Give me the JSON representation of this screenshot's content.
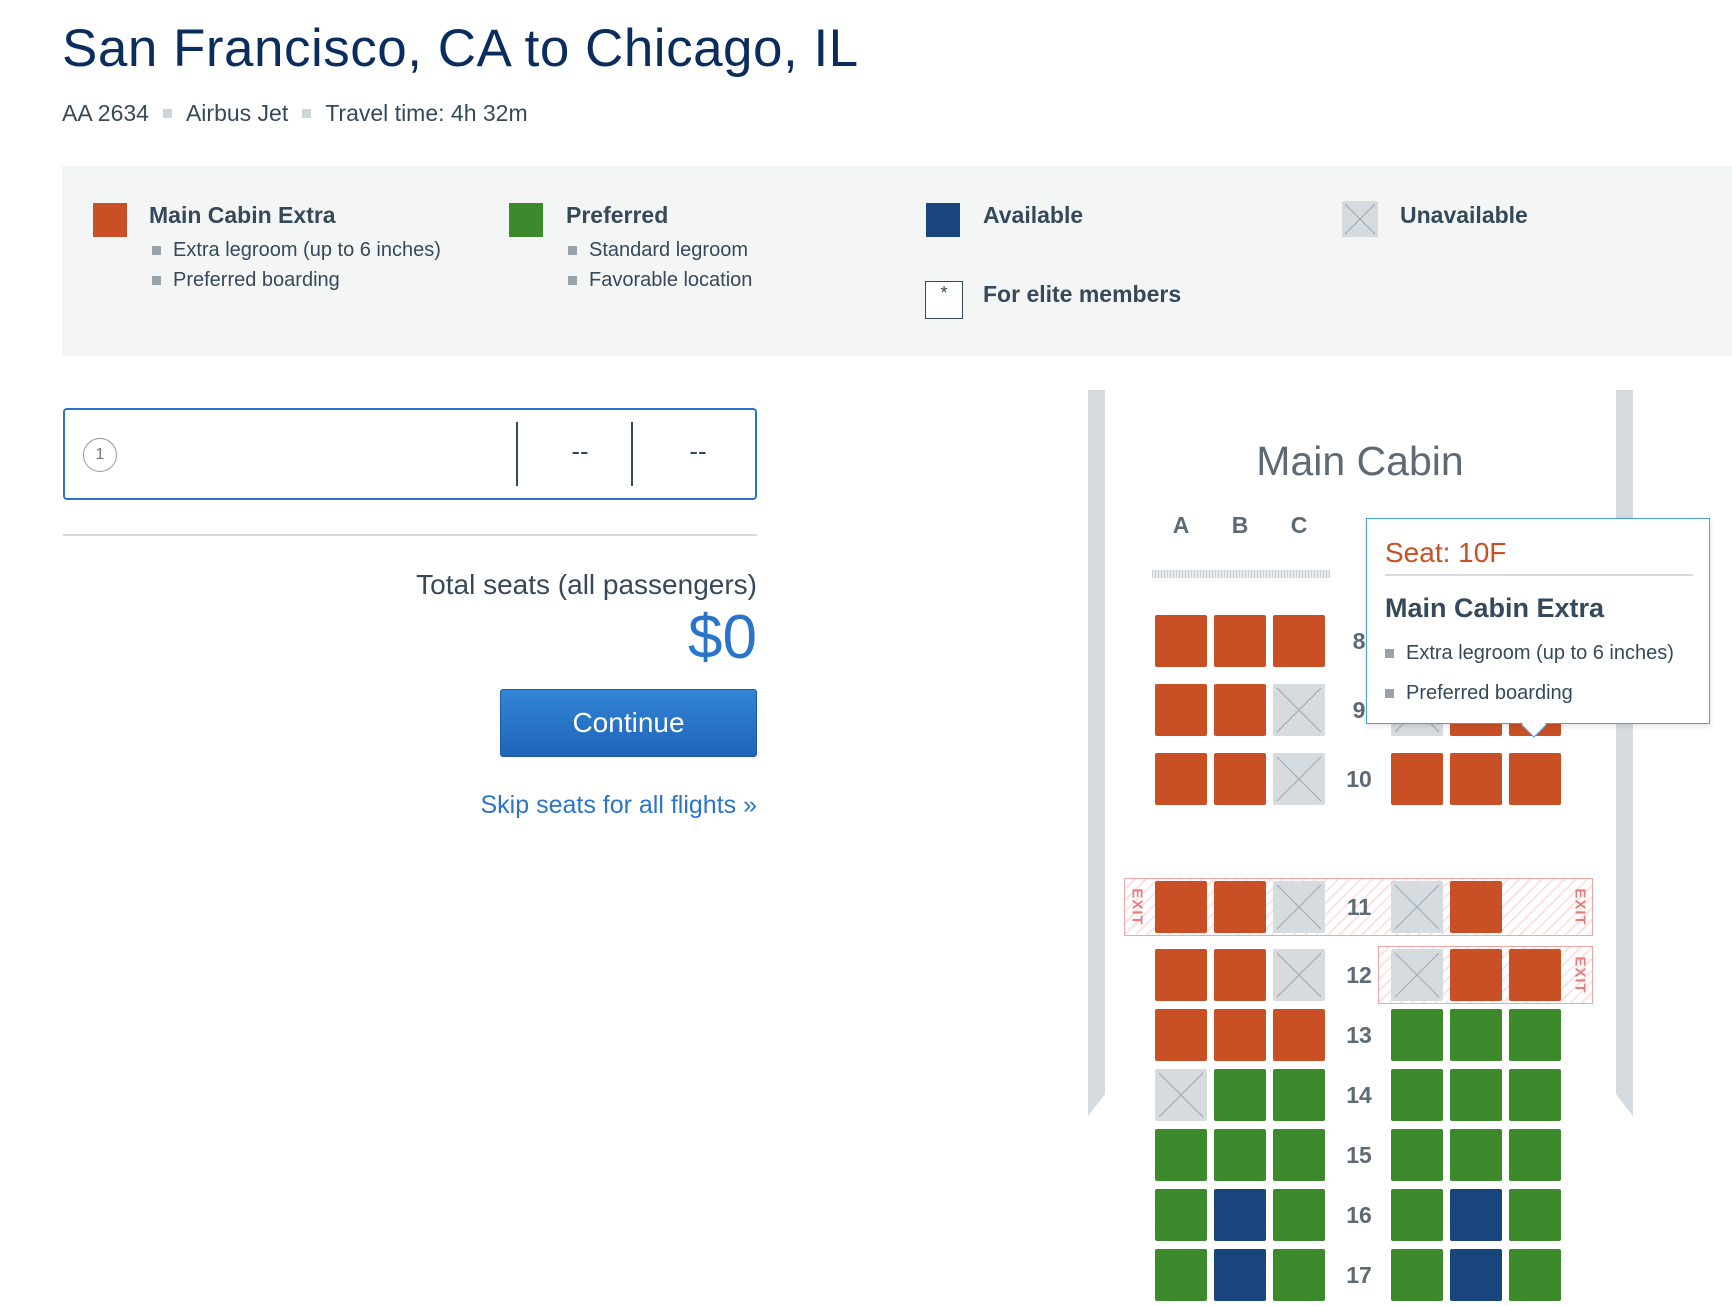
{
  "header": {
    "route": "San Francisco, CA to Chicago, IL",
    "flight_number": "AA 2634",
    "aircraft": "Airbus Jet",
    "travel_time": "Travel time: 4h 32m"
  },
  "legend": {
    "main_cabin_extra": {
      "title": "Main Cabin Extra",
      "color": "#c94f24",
      "bullets": [
        "Extra legroom (up to 6 inches)",
        "Preferred boarding"
      ]
    },
    "preferred": {
      "title": "Preferred",
      "color": "#3d8a2d",
      "bullets": [
        "Standard legroom",
        "Favorable location"
      ]
    },
    "available": {
      "title": "Available",
      "color": "#17457c"
    },
    "unavailable": {
      "title": "Unavailable",
      "color": "#d6dbe0"
    },
    "elite": {
      "title": "For elite members",
      "symbol": "*"
    }
  },
  "passenger": {
    "number": "1",
    "seat_1": "--",
    "seat_2": "--"
  },
  "summary": {
    "total_label": "Total seats (all passengers)",
    "total_price": "$0",
    "continue_label": "Continue",
    "skip_label": "Skip seats for all flights »"
  },
  "seatmap": {
    "cabin_title": "Main Cabin",
    "columns_left": [
      "A",
      "B",
      "C"
    ],
    "rows": [
      {
        "number": "8",
        "seats": [
          "mce",
          "mce",
          "mce",
          "unavail",
          "mce",
          "mce"
        ]
      },
      {
        "number": "9",
        "seats": [
          "mce",
          "mce",
          "unavail",
          "unavail",
          "mce",
          "mce"
        ]
      },
      {
        "number": "10",
        "seats": [
          "mce",
          "mce",
          "unavail",
          "mce",
          "mce",
          "mce"
        ]
      },
      {
        "number": "11",
        "seats": [
          "mce",
          "mce",
          "unavail",
          "unavail",
          "mce",
          null
        ]
      },
      {
        "number": "12",
        "seats": [
          "mce",
          "mce",
          "unavail",
          "unavail",
          "mce",
          "mce"
        ]
      },
      {
        "number": "13",
        "seats": [
          "mce",
          "mce",
          "mce",
          "pref",
          "pref",
          "pref"
        ]
      },
      {
        "number": "14",
        "seats": [
          "unavail",
          "pref",
          "pref",
          "pref",
          "pref",
          "pref"
        ]
      },
      {
        "number": "15",
        "seats": [
          "pref",
          "pref",
          "pref",
          "pref",
          "pref",
          "pref"
        ]
      },
      {
        "number": "16",
        "seats": [
          "pref",
          "avail",
          "pref",
          "pref",
          "avail",
          "pref"
        ]
      },
      {
        "number": "17",
        "seats": [
          "pref",
          "avail",
          "pref",
          "pref",
          "avail",
          "pref"
        ]
      }
    ],
    "exit_label": "EXIT"
  },
  "tooltip": {
    "seat": "Seat: 10F",
    "type": "Main Cabin Extra",
    "bullets": [
      "Extra legroom (up to 6 inches)",
      "Preferred boarding"
    ]
  }
}
